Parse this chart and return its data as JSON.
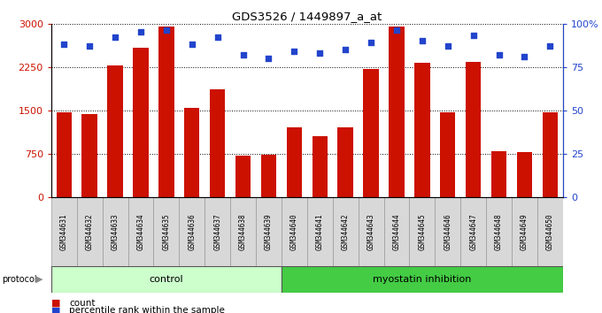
{
  "title": "GDS3526 / 1449897_a_at",
  "samples": [
    "GSM344631",
    "GSM344632",
    "GSM344633",
    "GSM344634",
    "GSM344635",
    "GSM344636",
    "GSM344637",
    "GSM344638",
    "GSM344639",
    "GSM344640",
    "GSM344641",
    "GSM344642",
    "GSM344643",
    "GSM344644",
    "GSM344645",
    "GSM344646",
    "GSM344647",
    "GSM344648",
    "GSM344649",
    "GSM344650"
  ],
  "counts": [
    1460,
    1440,
    2280,
    2580,
    2950,
    1540,
    1870,
    720,
    730,
    1200,
    1050,
    1200,
    2220,
    2950,
    2320,
    1470,
    2340,
    790,
    780,
    1460
  ],
  "percentile": [
    88,
    87,
    92,
    95,
    96,
    88,
    92,
    82,
    80,
    84,
    83,
    85,
    89,
    96,
    90,
    87,
    93,
    82,
    81,
    87
  ],
  "control_count": 9,
  "bar_color": "#cc1100",
  "dot_color": "#2244cc",
  "control_color": "#ccffcc",
  "myostatin_color": "#44cc44",
  "left_ylim": [
    0,
    3000
  ],
  "right_ylim": [
    0,
    100
  ],
  "left_yticks": [
    0,
    750,
    1500,
    2250,
    3000
  ],
  "right_yticks": [
    0,
    25,
    50,
    75,
    100
  ],
  "right_yticklabels": [
    "0",
    "25",
    "50",
    "75",
    "100%"
  ]
}
